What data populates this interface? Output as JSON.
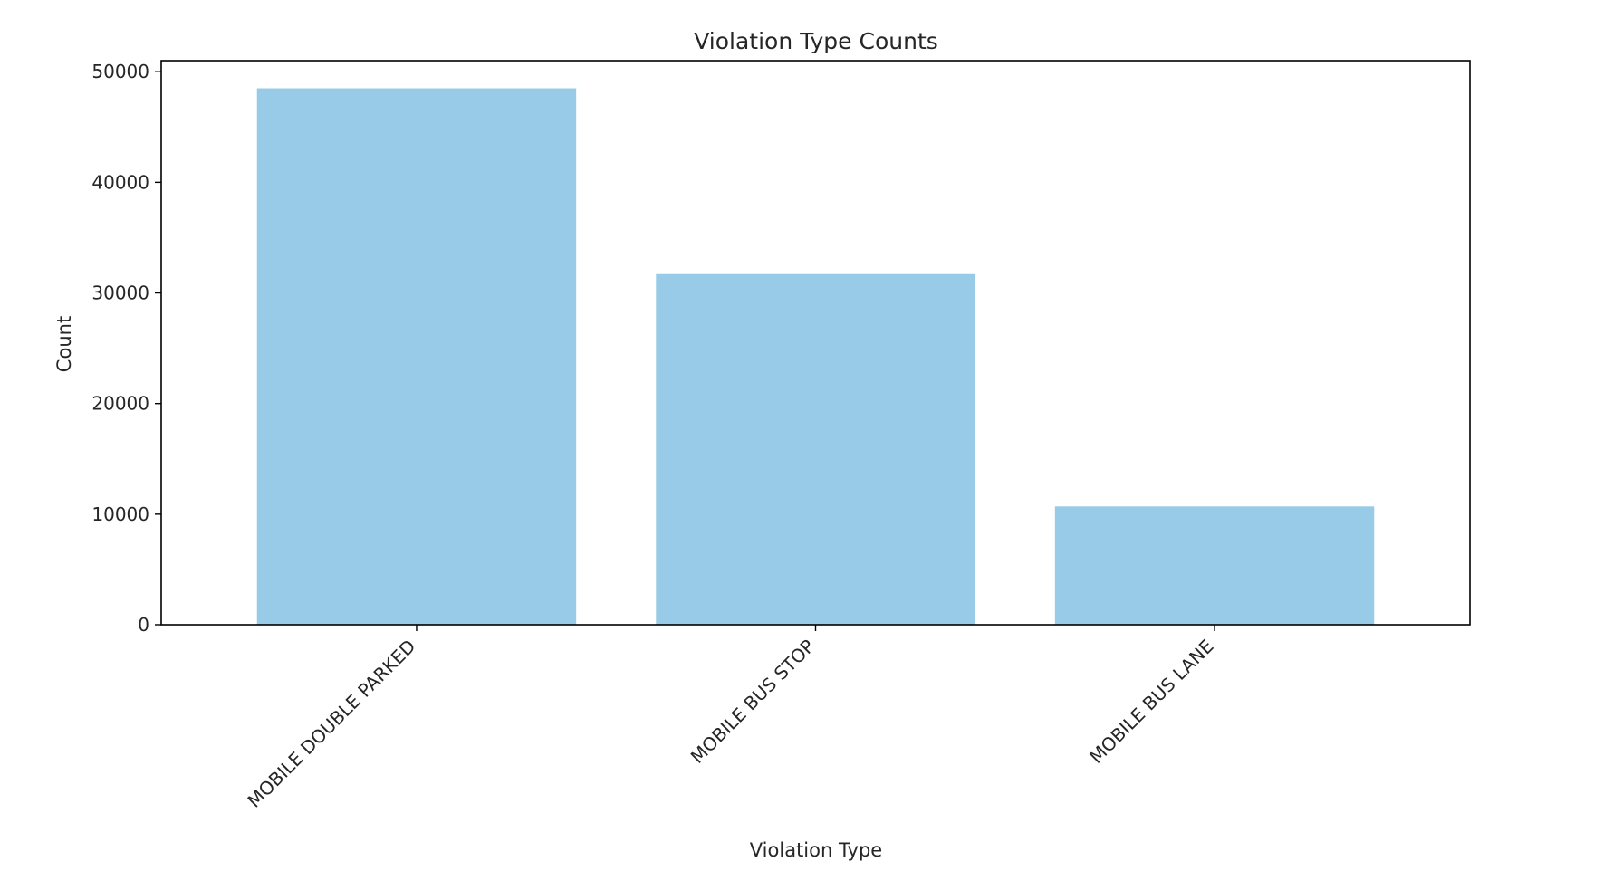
{
  "chart_data": {
    "type": "bar",
    "title": "Violation Type Counts",
    "xlabel": "Violation Type",
    "ylabel": "Count",
    "categories": [
      "MOBILE DOUBLE PARKED",
      "MOBILE BUS STOP",
      "MOBILE BUS LANE"
    ],
    "values": [
      48500,
      31700,
      10700
    ],
    "ylim": [
      0,
      51000
    ],
    "yticks": [
      0,
      10000,
      20000,
      30000,
      40000,
      50000
    ],
    "ytick_labels": [
      "0",
      "10000",
      "20000",
      "30000",
      "40000",
      "50000"
    ],
    "bar_color": "#97cbe7",
    "grid": false,
    "legend": null
  }
}
